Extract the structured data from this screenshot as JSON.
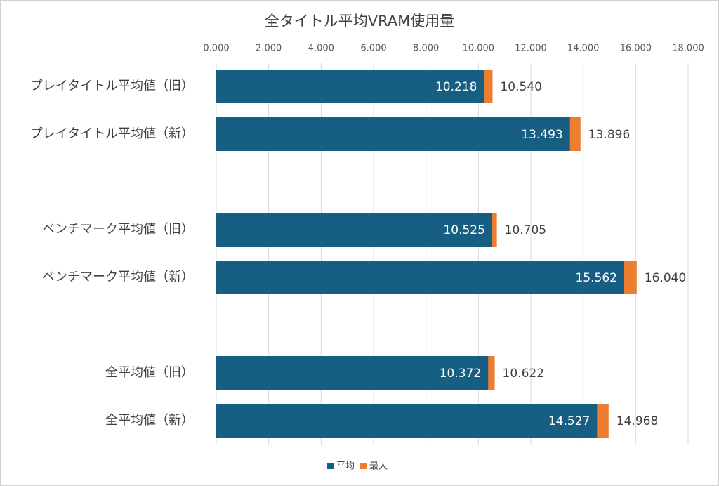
{
  "chart_data": {
    "type": "bar",
    "orientation": "horizontal",
    "overlap": true,
    "title": "全タイトル平均VRAM使用量",
    "categories": [
      "プレイタイトル平均値（旧）",
      "プレイタイトル平均値（新）",
      null,
      "ベンチマーク平均値（旧）",
      "ベンチマーク平均値（新）",
      null,
      "全平均値（旧）",
      "全平均値（新）"
    ],
    "series": [
      {
        "name": "平均",
        "color": "#175f82",
        "values": [
          10.218,
          13.493,
          null,
          10.525,
          15.562,
          null,
          10.372,
          14.527
        ],
        "value_labels": [
          "10.218",
          "13.493",
          null,
          "10.525",
          "15.562",
          null,
          "10.372",
          "14.527"
        ]
      },
      {
        "name": "最大",
        "color": "#ed7d31",
        "values": [
          10.54,
          13.896,
          null,
          10.705,
          16.04,
          null,
          10.622,
          14.968
        ],
        "value_labels": [
          "10.540",
          "13.896",
          null,
          "10.705",
          "16.040",
          null,
          "10.622",
          "14.968"
        ]
      }
    ],
    "xlim": [
      0,
      18
    ],
    "xticks": [
      {
        "value": 0,
        "label": "0.000"
      },
      {
        "value": 2,
        "label": "2.000"
      },
      {
        "value": 4,
        "label": "4.000"
      },
      {
        "value": 6,
        "label": "6.000"
      },
      {
        "value": 8,
        "label": "8.000"
      },
      {
        "value": 10,
        "label": "10.000"
      },
      {
        "value": 12,
        "label": "12.000"
      },
      {
        "value": 14,
        "label": "14.000"
      },
      {
        "value": 16,
        "label": "16.000"
      },
      {
        "value": 18,
        "label": "18.000"
      }
    ],
    "grid": true,
    "legend": "bottom"
  }
}
